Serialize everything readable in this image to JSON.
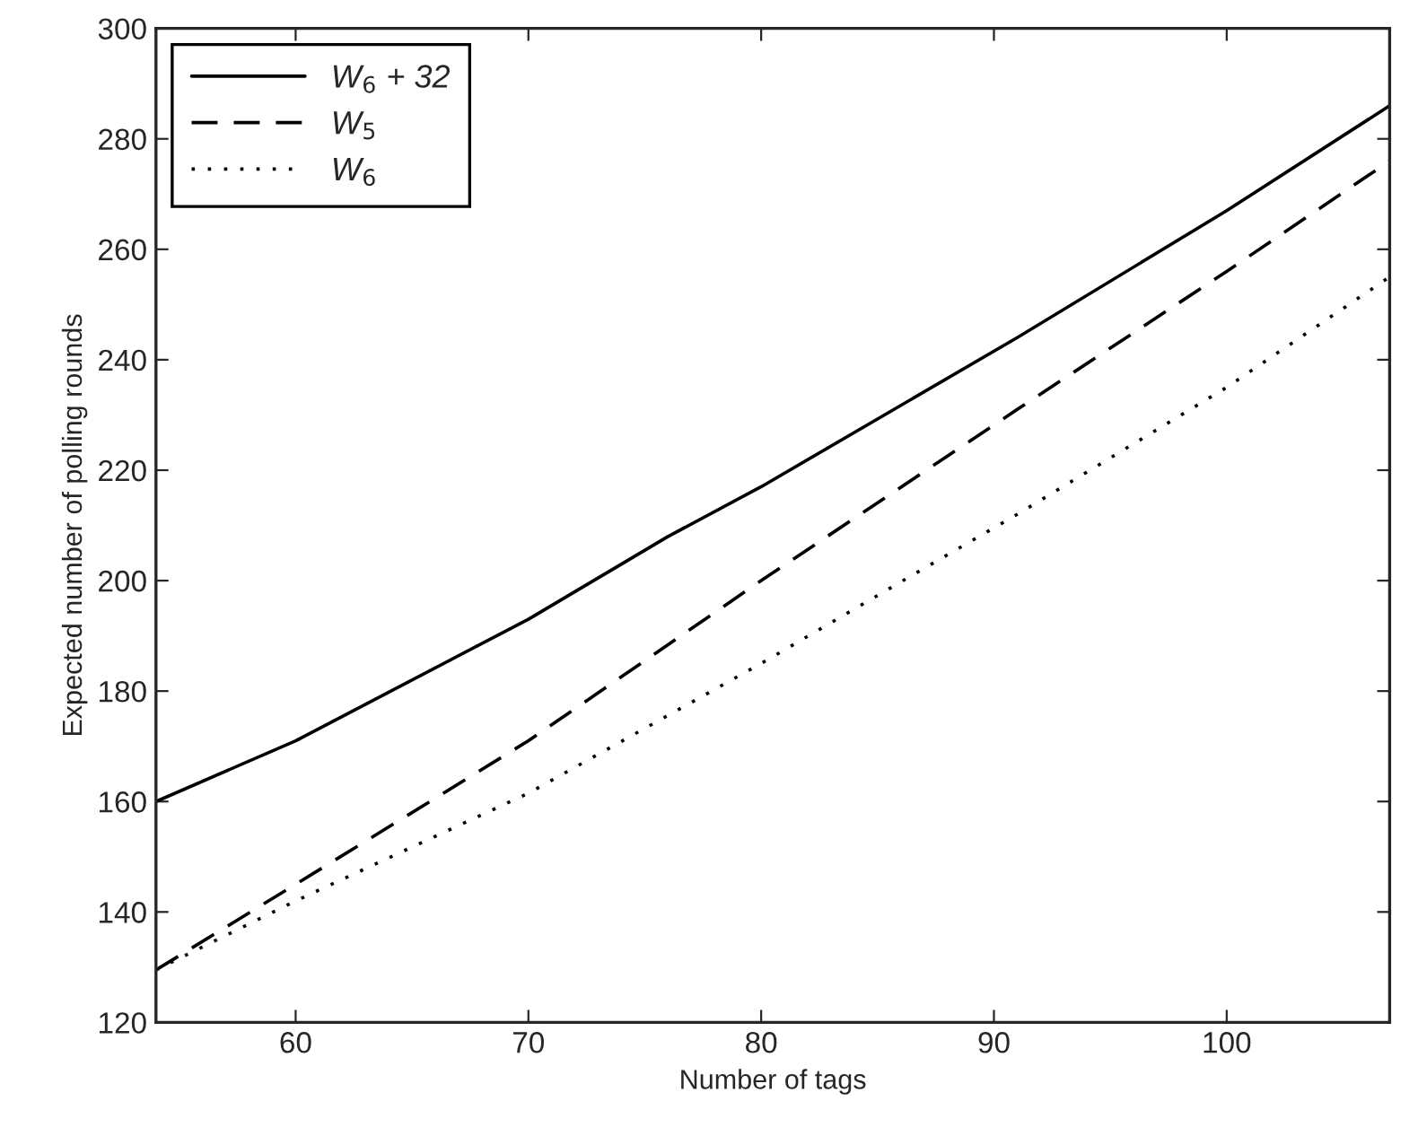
{
  "chart_data": {
    "type": "line",
    "xlabel": "Number of tags",
    "ylabel": "Expected number of polling rounds",
    "xlim": [
      54,
      107
    ],
    "xticks": [
      60,
      70,
      80,
      90,
      100
    ],
    "ylim": [
      120,
      300
    ],
    "yticks": [
      120,
      140,
      160,
      180,
      200,
      220,
      240,
      260,
      280,
      300
    ],
    "grid": false,
    "legend": "top left",
    "marker": "none",
    "series": [
      {
        "name": "W$_{6}$ + 32",
        "color": "#000000",
        "line_style": "solid",
        "x": [
          54,
          60,
          70,
          76,
          80,
          91,
          100,
          107
        ],
        "values": [
          160,
          171,
          193,
          208,
          217,
          244,
          267,
          286
        ]
      },
      {
        "name": "W$_{5}$",
        "color": "#000000",
        "line_style": "dashed",
        "x": [
          54,
          60,
          70,
          80,
          91,
          100,
          107
        ],
        "values": [
          129.5,
          145,
          171,
          200,
          231,
          256,
          276
        ]
      },
      {
        "name": "W$_{6}$",
        "color": "#000000",
        "line_style": "dotted",
        "x": [
          54,
          60,
          70,
          80,
          86.5,
          91,
          100,
          107
        ],
        "values": [
          129.5,
          142,
          161.5,
          185,
          201,
          212,
          235,
          255
        ]
      }
    ]
  }
}
